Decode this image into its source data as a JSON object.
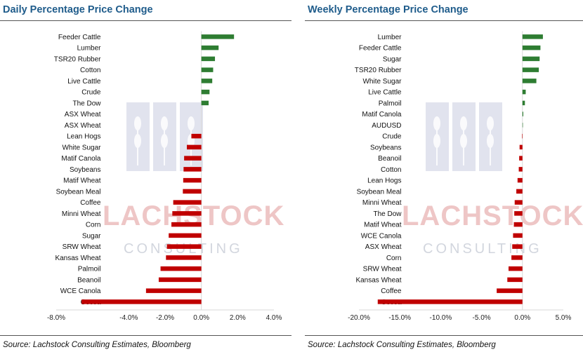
{
  "colors": {
    "positive": "#2E7D32",
    "negative": "#C00000",
    "title": "#1F5C8B",
    "axis": "#D9D9D9"
  },
  "watermark": {
    "line1": "LACHSTOCK",
    "line2": "CONSULTING"
  },
  "chart_data": [
    {
      "type": "bar",
      "orientation": "horizontal",
      "title": "Daily Percentage Price Change",
      "source": "Source: Lachstock Consulting Estimates, Bloomberg",
      "xlim": [
        -0.08,
        0.04
      ],
      "tick_values": [
        -0.08,
        -0.04,
        -0.02,
        0,
        0.02,
        0.04
      ],
      "tick_labels": [
        "-8.0%",
        "-4.0%",
        "-2.0%",
        "0.0%",
        "2.0%",
        "4.0%"
      ],
      "categories": [
        "Feeder Cattle",
        "Lumber",
        "TSR20 Rubber",
        "Cotton",
        "Live Cattle",
        "Crude",
        "The Dow",
        "ASX Wheat",
        "ASX Wheat",
        "Lean Hogs",
        "White Sugar",
        "Matif Canola",
        "Soybeans",
        "Matif Wheat",
        "Soybean Meal",
        "Coffee",
        "Minni Wheat",
        "Corn",
        "Sugar",
        "SRW Wheat",
        "Kansas Wheat",
        "Palmoil",
        "Beanoil",
        "WCE Canola",
        "Cocoa"
      ],
      "values": [
        0.018,
        0.0095,
        0.0075,
        0.0065,
        0.006,
        0.0045,
        0.004,
        0,
        0,
        -0.0055,
        -0.008,
        -0.0095,
        -0.0098,
        -0.01,
        -0.0102,
        -0.0155,
        -0.016,
        -0.0165,
        -0.018,
        -0.019,
        -0.0195,
        -0.0225,
        -0.0235,
        -0.0305,
        -0.066
      ]
    },
    {
      "type": "bar",
      "orientation": "horizontal",
      "title": "Weekly Percentage Price Change",
      "source": "Source: Lachstock Consulting Estimates, Bloomberg",
      "xlim": [
        -0.2,
        0.05
      ],
      "tick_values": [
        -0.2,
        -0.15,
        -0.1,
        -0.05,
        0,
        0.05
      ],
      "tick_labels": [
        "-20.0%",
        "-15.0%",
        "-10.0%",
        "-5.0%",
        "0.0%",
        "5.0%"
      ],
      "categories": [
        "Lumber",
        "Feeder Cattle",
        "Sugar",
        "TSR20 Rubber",
        "White Sugar",
        "Live Cattle",
        "Palmoil",
        "Matif Canola",
        "AUDUSD",
        "Crude",
        "Soybeans",
        "Beanoil",
        "Cotton",
        "Lean Hogs",
        "Soybean Meal",
        "Minni Wheat",
        "The Dow",
        "Matif Wheat",
        "WCE Canola",
        "ASX Wheat",
        "Corn",
        "SRW Wheat",
        "Kansas Wheat",
        "Coffee",
        "Cocoa"
      ],
      "values": [
        0.025,
        0.022,
        0.021,
        0.02,
        0.017,
        0.004,
        0.003,
        0.001,
        0.0005,
        -0.0005,
        -0.0035,
        -0.004,
        -0.0045,
        -0.006,
        -0.0075,
        -0.0095,
        -0.01,
        -0.0105,
        -0.0115,
        -0.0125,
        -0.0135,
        -0.017,
        -0.0185,
        -0.0315,
        -0.177
      ]
    }
  ]
}
